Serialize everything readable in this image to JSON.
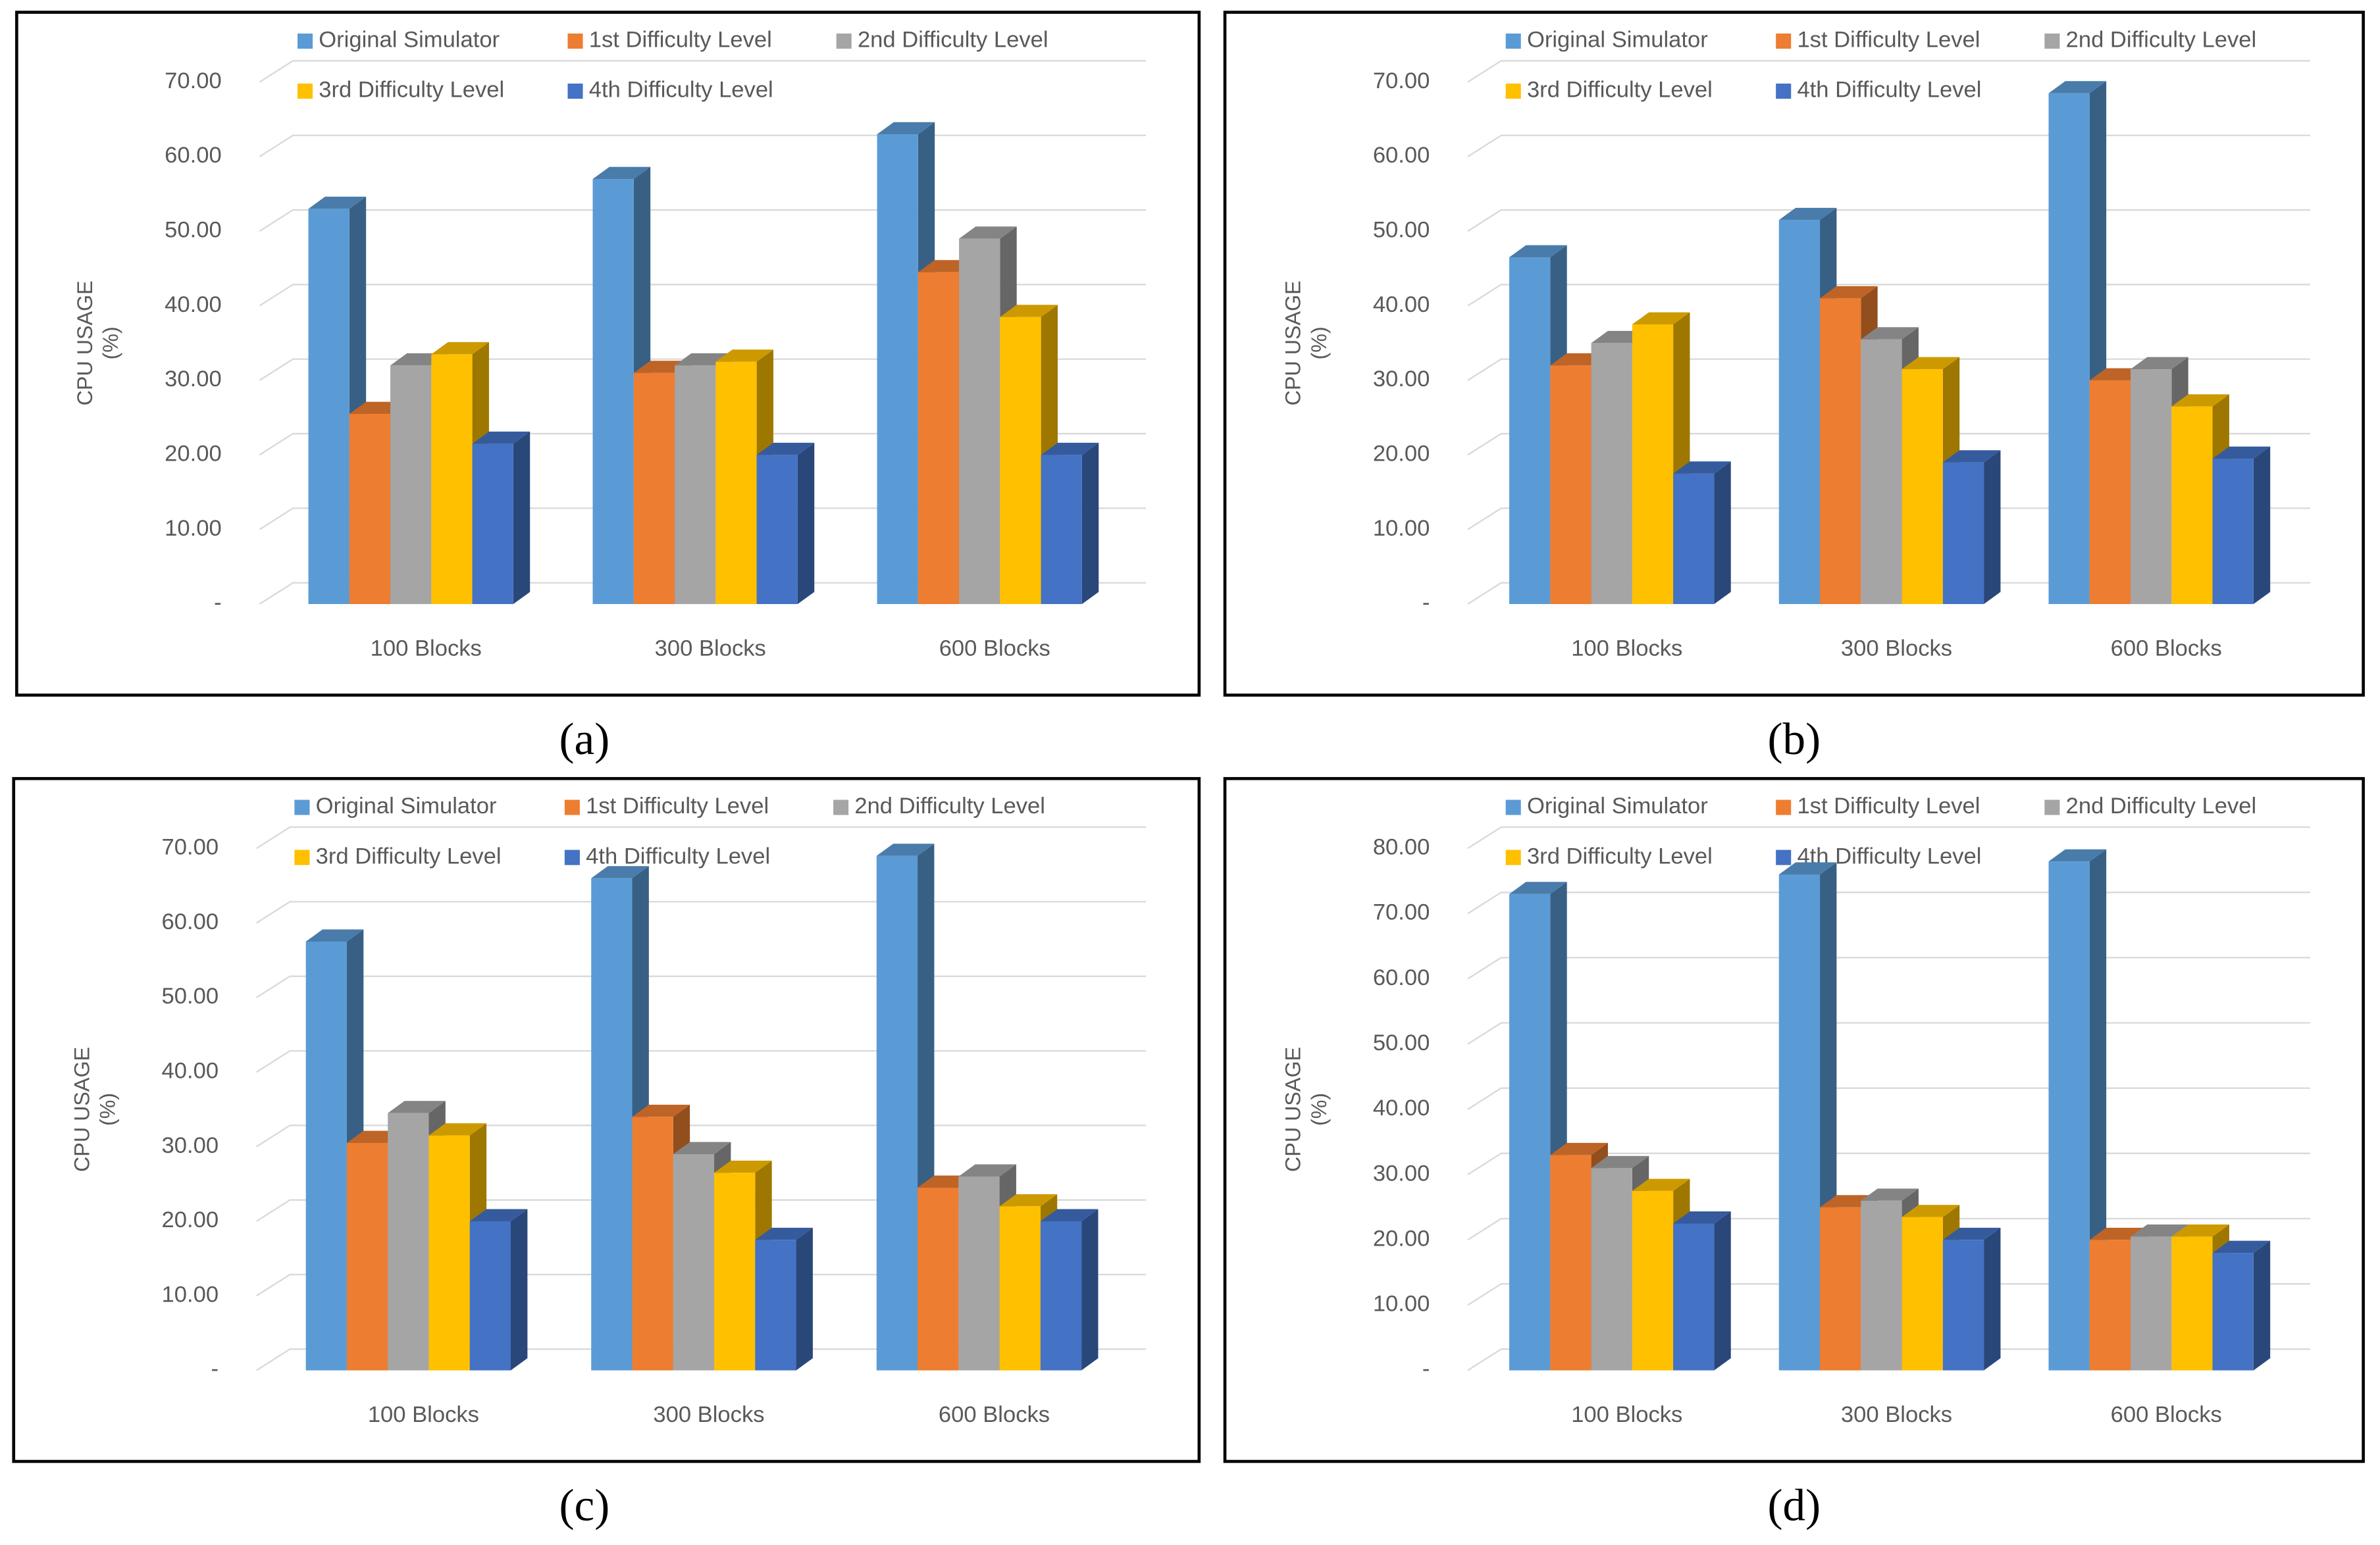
{
  "chart_data": [
    {
      "type": "bar3d",
      "caption": "(a)",
      "ylabel": [
        "CPU USAGE",
        "(%)"
      ],
      "categories": [
        "100 Blocks",
        "300 Blocks",
        "600 Blocks"
      ],
      "series": [
        {
          "name": "Original Simulator",
          "color": "#5b9bd5",
          "values": [
            53,
            57,
            63
          ]
        },
        {
          "name": "1st Difficulty Level",
          "color": "#ed7d31",
          "values": [
            25.5,
            31,
            44.5
          ]
        },
        {
          "name": "2nd Difficulty Level",
          "color": "#a5a5a5",
          "values": [
            32,
            32,
            49
          ]
        },
        {
          "name": "3rd Difficulty Level",
          "color": "#ffc000",
          "values": [
            33.5,
            32.5,
            38.5
          ]
        },
        {
          "name": "4th Difficulty Level",
          "color": "#4472c4",
          "values": [
            21.5,
            20,
            20
          ]
        }
      ],
      "ylim": [
        0,
        70
      ],
      "yticks": [
        {
          "value": 0,
          "label": "-"
        },
        {
          "value": 10,
          "label": "10.00"
        },
        {
          "value": 20,
          "label": "20.00"
        },
        {
          "value": 30,
          "label": "30.00"
        },
        {
          "value": 40,
          "label": "40.00"
        },
        {
          "value": 50,
          "label": "50.00"
        },
        {
          "value": 60,
          "label": "60.00"
        },
        {
          "value": 70,
          "label": "70.00"
        }
      ],
      "grid": true
    },
    {
      "type": "bar3d",
      "caption": "(b)",
      "ylabel": [
        "CPU USAGE",
        "(%)"
      ],
      "categories": [
        "100 Blocks",
        "300 Blocks",
        "600 Blocks"
      ],
      "series": [
        {
          "name": "Original Simulator",
          "color": "#5b9bd5",
          "values": [
            46.5,
            51.5,
            68.5
          ]
        },
        {
          "name": "1st Difficulty Level",
          "color": "#ed7d31",
          "values": [
            32,
            41,
            30
          ]
        },
        {
          "name": "2nd Difficulty Level",
          "color": "#a5a5a5",
          "values": [
            35,
            35.5,
            31.5
          ]
        },
        {
          "name": "3rd Difficulty Level",
          "color": "#ffc000",
          "values": [
            37.5,
            31.5,
            26.5
          ]
        },
        {
          "name": "4th Difficulty Level",
          "color": "#4472c4",
          "values": [
            17.5,
            19,
            19.5
          ]
        }
      ],
      "ylim": [
        0,
        70
      ],
      "yticks": [
        {
          "value": 0,
          "label": "-"
        },
        {
          "value": 10,
          "label": "10.00"
        },
        {
          "value": 20,
          "label": "20.00"
        },
        {
          "value": 30,
          "label": "30.00"
        },
        {
          "value": 40,
          "label": "40.00"
        },
        {
          "value": 50,
          "label": "50.00"
        },
        {
          "value": 60,
          "label": "60.00"
        },
        {
          "value": 70,
          "label": "70.00"
        }
      ],
      "grid": true
    },
    {
      "type": "bar3d",
      "caption": "(c)",
      "ylabel": [
        "CPU USAGE",
        "(%)"
      ],
      "categories": [
        "100 Blocks",
        "300 Blocks",
        "600 Blocks"
      ],
      "series": [
        {
          "name": "Original Simulator",
          "color": "#5b9bd5",
          "values": [
            57.5,
            66,
            69
          ]
        },
        {
          "name": "1st Difficulty Level",
          "color": "#ed7d31",
          "values": [
            30.5,
            34,
            24.5
          ]
        },
        {
          "name": "2nd Difficulty Level",
          "color": "#a5a5a5",
          "values": [
            34.5,
            29,
            26
          ]
        },
        {
          "name": "3rd Difficulty Level",
          "color": "#ffc000",
          "values": [
            31.5,
            26.5,
            22
          ]
        },
        {
          "name": "4th Difficulty Level",
          "color": "#4472c4",
          "values": [
            20,
            17.5,
            20
          ]
        }
      ],
      "ylim": [
        0,
        70
      ],
      "yticks": [
        {
          "value": 0,
          "label": "-"
        },
        {
          "value": 10,
          "label": "10.00"
        },
        {
          "value": 20,
          "label": "20.00"
        },
        {
          "value": 30,
          "label": "30.00"
        },
        {
          "value": 40,
          "label": "40.00"
        },
        {
          "value": 50,
          "label": "50.00"
        },
        {
          "value": 60,
          "label": "60.00"
        },
        {
          "value": 70,
          "label": "70.00"
        }
      ],
      "grid": true
    },
    {
      "type": "bar3d",
      "caption": "(d)",
      "ylabel": [
        "CPU USAGE",
        "(%)"
      ],
      "categories": [
        "100 Blocks",
        "300 Blocks",
        "600 Blocks"
      ],
      "series": [
        {
          "name": "Original Simulator",
          "color": "#5b9bd5",
          "values": [
            73,
            76,
            78
          ]
        },
        {
          "name": "1st Difficulty Level",
          "color": "#ed7d31",
          "values": [
            33,
            25,
            20
          ]
        },
        {
          "name": "2nd Difficulty Level",
          "color": "#a5a5a5",
          "values": [
            31,
            26,
            20.5
          ]
        },
        {
          "name": "3rd Difficulty Level",
          "color": "#ffc000",
          "values": [
            27.5,
            23.5,
            20.5
          ]
        },
        {
          "name": "4th Difficulty Level",
          "color": "#4472c4",
          "values": [
            22.5,
            20,
            18
          ]
        }
      ],
      "ylim": [
        0,
        80
      ],
      "yticks": [
        {
          "value": 0,
          "label": "-"
        },
        {
          "value": 10,
          "label": "10.00"
        },
        {
          "value": 20,
          "label": "20.00"
        },
        {
          "value": 30,
          "label": "30.00"
        },
        {
          "value": 40,
          "label": "40.00"
        },
        {
          "value": 50,
          "label": "50.00"
        },
        {
          "value": 60,
          "label": "60.00"
        },
        {
          "value": 70,
          "label": "70.00"
        },
        {
          "value": 80,
          "label": "80.00"
        }
      ],
      "grid": true
    }
  ]
}
